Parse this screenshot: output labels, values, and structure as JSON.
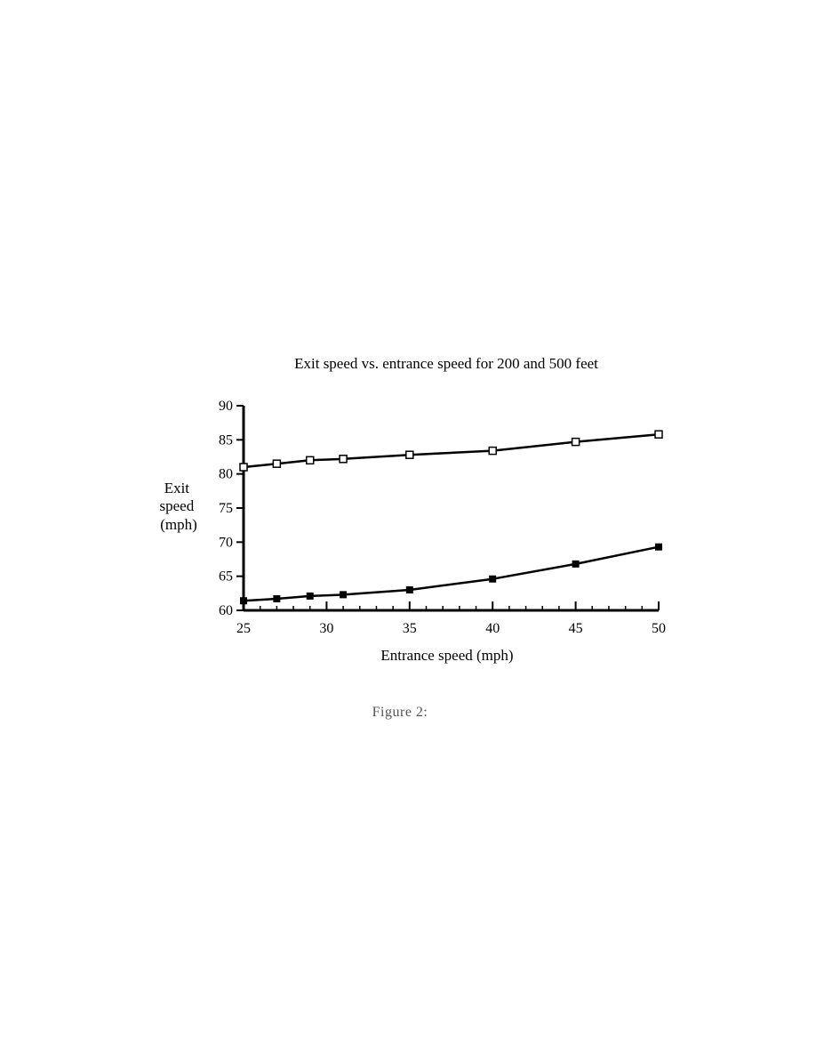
{
  "chart_data": {
    "type": "line",
    "title": "Exit speed vs. entrance speed for 200 and 500 feet",
    "xlabel": "Entrance speed (mph)",
    "ylabel": [
      "Exit",
      "speed",
      "(mph)"
    ],
    "xlim": [
      25,
      50
    ],
    "ylim": [
      60,
      90
    ],
    "xticks": [
      25,
      30,
      35,
      40,
      45,
      50
    ],
    "yticks": [
      60,
      65,
      70,
      75,
      80,
      85,
      90
    ],
    "grid": false,
    "legend": "none",
    "series": [
      {
        "marker": "open-square",
        "x": [
          25,
          27,
          29,
          31,
          35,
          40,
          45,
          50
        ],
        "y": [
          81.0,
          81.5,
          82.0,
          82.2,
          82.8,
          83.4,
          84.7,
          85.8
        ]
      },
      {
        "marker": "filled-square",
        "x": [
          25,
          27,
          29,
          31,
          35,
          40,
          45,
          50
        ],
        "y": [
          61.4,
          61.7,
          62.1,
          62.3,
          63.0,
          64.6,
          66.8,
          69.3
        ]
      }
    ]
  },
  "caption": "Figure 2:"
}
